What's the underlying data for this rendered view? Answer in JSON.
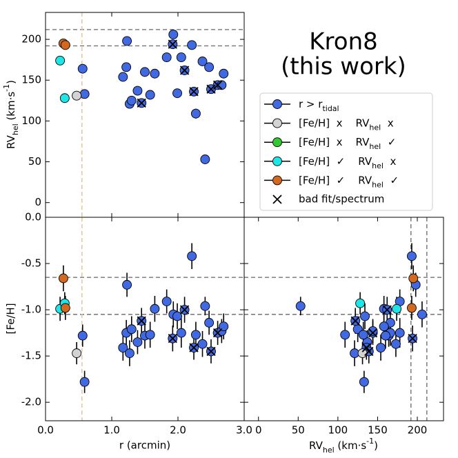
{
  "chart_data": {
    "type": "scatter",
    "title": "Kron8",
    "subtitle": "(this work)",
    "rlabel": "r (arcmin)",
    "rvlabel": "RV_{hel} (km·s^{-1})",
    "fehlabel": "[Fe/H]",
    "rlim": [
      0,
      3.0
    ],
    "rticks": [
      {
        "value": 0,
        "label": "0.0"
      },
      {
        "value": 1,
        "label": "1.0"
      },
      {
        "value": 2,
        "label": "2.0"
      },
      {
        "value": 3,
        "label": "3.0"
      }
    ],
    "rvlim": [
      -18,
      233
    ],
    "rvticks": [
      0,
      50,
      100,
      150,
      200
    ],
    "fehlim": [
      -2.2,
      0
    ],
    "fehticks": [
      {
        "value": 0,
        "label": "0.0"
      },
      {
        "value": -0.5,
        "label": "-0.5"
      },
      {
        "value": -1,
        "label": "-1.0"
      },
      {
        "value": -1.5,
        "label": "-1.5"
      },
      {
        "value": -2,
        "label": "-2.0"
      }
    ],
    "rv_lines": [
      192,
      212
    ],
    "feh_lines": [
      -0.65,
      -1.05
    ],
    "r_tidal": 0.55,
    "series": [
      {
        "name": "r > r_{tidal}",
        "color": "#4169e1",
        "marker": "o",
        "r": [
          0.56,
          0.59,
          1.17,
          1.22,
          1.23,
          1.27,
          1.3,
          1.39,
          1.45,
          1.5,
          1.58,
          1.65,
          1.83,
          1.92,
          1.93,
          1.99,
          2.05,
          2.1,
          2.21,
          2.24,
          2.27,
          2.37,
          2.41,
          2.47,
          2.5,
          2.6,
          2.66,
          2.69
        ],
        "rv": [
          164,
          133,
          154,
          166,
          198,
          121,
          125,
          137,
          122,
          160,
          132,
          158,
          178,
          194,
          206,
          134,
          178,
          162,
          193,
          136,
          109,
          173,
          53,
          166,
          139,
          144,
          144,
          158
        ],
        "feh": [
          -1.28,
          -1.78,
          -1.41,
          -1.25,
          -0.73,
          -1.47,
          -1.21,
          -1.35,
          -1.12,
          -1.28,
          -1.27,
          -0.99,
          -0.91,
          -1.31,
          -1.05,
          -1.07,
          -1.25,
          -1.0,
          -0.42,
          -1.41,
          -1.27,
          -1.37,
          -0.96,
          -1.14,
          -1.45,
          -1.25,
          -1.23,
          -1.18
        ],
        "rv_err": [
          4,
          4,
          4,
          4,
          4,
          4,
          4,
          4,
          4,
          4,
          4,
          4,
          4,
          4,
          5,
          4,
          4,
          4,
          4,
          4,
          6,
          4,
          4,
          4,
          5,
          4,
          4,
          5
        ],
        "feh_err": [
          0.12,
          0.12,
          0.14,
          0.14,
          0.13,
          0.14,
          0.14,
          0.13,
          0.14,
          0.14,
          0.14,
          0.14,
          0.13,
          0.14,
          0.14,
          0.14,
          0.16,
          0.14,
          0.14,
          0.13,
          0.14,
          0.14,
          0.1,
          0.13,
          0.13,
          0.13,
          0.13,
          0.14
        ]
      },
      {
        "name": "[Fe/H]  x    RV_{hel}  x",
        "color": "#d3d3d3",
        "marker": "o",
        "r": [
          0.47
        ],
        "rv": [
          131
        ],
        "feh": [
          -1.47
        ],
        "rv_err": [
          5
        ],
        "feh_err": [
          0.12
        ]
      },
      {
        "name": "[Fe/H]  x    RV_{hel}  ✓",
        "color": "#32c832",
        "marker": "o",
        "r": [],
        "rv": [],
        "feh": [],
        "rv_err": [],
        "feh_err": []
      },
      {
        "name": "[Fe/H]  ✓    RV_{hel}  x",
        "color": "#1ee6e6",
        "marker": "o",
        "r": [
          0.22,
          0.29
        ],
        "rv": [
          174,
          128
        ],
        "feh": [
          -0.99,
          -0.93
        ],
        "rv_err": [
          4,
          4
        ],
        "feh_err": [
          0.13,
          0.12
        ]
      },
      {
        "name": "[Fe/H]  ✓    RV_{hel}  ✓",
        "color": "#d2691e",
        "marker": "o",
        "r": [
          0.27,
          0.3
        ],
        "rv": [
          195,
          193
        ],
        "feh": [
          -0.66,
          -0.98
        ],
        "rv_err": [
          5,
          4
        ],
        "feh_err": [
          0.14,
          0.13
        ]
      },
      {
        "name": "bad fit/spectrum",
        "color": "#000000",
        "marker": "x",
        "r": [
          1.45,
          1.92,
          2.1,
          2.24,
          2.5,
          2.6
        ],
        "rv": [
          122,
          194,
          162,
          136,
          139,
          144
        ],
        "feh": [
          -1.12,
          -1.31,
          -1.0,
          -1.41,
          -1.45,
          -1.25
        ]
      }
    ]
  }
}
